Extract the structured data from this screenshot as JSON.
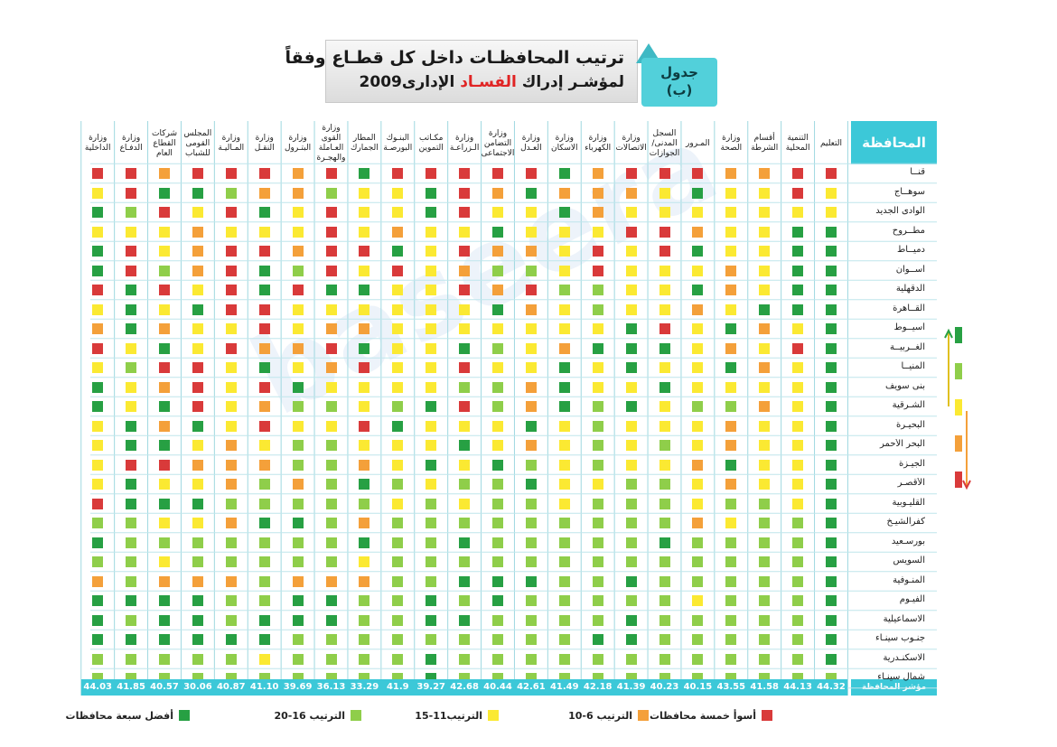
{
  "title": {
    "line1": "ترتيب المحافظـات داخل كل قطـاع وفقاً",
    "line2_before": "لمؤشـر إدراك ",
    "line2_highlight": "الفسـاد",
    "line2_after": " الإدارى2009"
  },
  "badge": {
    "line1": "جدول",
    "line2": "(ب)"
  },
  "watermark": "baseera",
  "header_governorate": "المحافظة",
  "index_label": "مؤشر المحافظة",
  "colors": {
    "1": "#d93a3a",
    "2": "#f4a03a",
    "3": "#fbe932",
    "4": "#8fce4a",
    "5": "#27a043",
    "accent": "#3cc8d8"
  },
  "legend": [
    {
      "level": 1,
      "label": "أسوأ خمسة محافظات"
    },
    {
      "level": 2,
      "label": "الترتيب 6-10"
    },
    {
      "level": 3,
      "label": "الترتيب11-15"
    },
    {
      "level": 4,
      "label": "الترتيب 16-20"
    },
    {
      "level": 5,
      "label": "أفضل سبعة محافظات"
    }
  ],
  "chart_data": {
    "type": "heatmap",
    "columns": [
      "التعليم",
      "التنمية المحلية",
      "أقسام الشرطة",
      "وزارة الصحة",
      "المـرور",
      "السجل المدنى/ الجوازات",
      "وزارة الاتصالات",
      "وزارة الكهرباء",
      "وزارة الاسكان",
      "وزارة العـدل",
      "وزارة التضامن الاجتماعى",
      "وزارة الـزراعـة",
      "مكـاتب التموين",
      "البنـوك البورصـة",
      "المطار الجمارك",
      "وزارة القوى العـاملة والهجـرة",
      "وزارة البتـرول",
      "وزارة النقـل",
      "وزارة المـاليـة",
      "المجلس القومى للشباب",
      "شركات القطاع العام",
      "وزارة الدفـاع",
      "وزارة الداخلية"
    ],
    "rows": [
      "قنــا",
      "سوهــاج",
      "الوادى الجديد",
      "مطــروح",
      "دميــاط",
      "أســوان",
      "الدقهلية",
      "القــاهرة",
      "أسيــوط",
      "الغــربيــة",
      "المنيــا",
      "بنى سويف",
      "الشـرقية",
      "البحيـرة",
      "البحر الأحمر",
      "الجيـزة",
      "الأقصـر",
      "القليـوبية",
      "كفرالشيـخ",
      "بورسـعيد",
      "السويس",
      "المنـوفية",
      "الفيـوم",
      "الاسماعيلية",
      "جنـوب سينـاء",
      "الاسكنـدرية",
      "شمال سينـاء"
    ],
    "values": [
      [
        1,
        1,
        2,
        2,
        1,
        1,
        1,
        2,
        5,
        1,
        1,
        1,
        1,
        1,
        5,
        1,
        2,
        1,
        1,
        1,
        2,
        1,
        1
      ],
      [
        3,
        1,
        3,
        3,
        5,
        3,
        2,
        2,
        2,
        5,
        2,
        1,
        5,
        3,
        3,
        4,
        2,
        2,
        4,
        5,
        5,
        1,
        3
      ],
      [
        3,
        3,
        3,
        3,
        3,
        3,
        3,
        2,
        5,
        3,
        3,
        1,
        5,
        3,
        3,
        1,
        3,
        5,
        1,
        3,
        1,
        4,
        5
      ],
      [
        5,
        5,
        3,
        3,
        2,
        1,
        1,
        3,
        3,
        3,
        5,
        3,
        3,
        2,
        3,
        1,
        3,
        3,
        3,
        2,
        3,
        3,
        3
      ],
      [
        5,
        5,
        3,
        3,
        5,
        1,
        3,
        1,
        3,
        2,
        2,
        1,
        3,
        5,
        1,
        1,
        2,
        1,
        1,
        2,
        3,
        1,
        5
      ],
      [
        5,
        5,
        3,
        2,
        3,
        3,
        3,
        1,
        3,
        4,
        4,
        2,
        3,
        1,
        3,
        1,
        4,
        5,
        1,
        2,
        4,
        1,
        5
      ],
      [
        5,
        5,
        3,
        2,
        5,
        3,
        3,
        4,
        4,
        1,
        2,
        1,
        3,
        3,
        5,
        5,
        1,
        5,
        1,
        3,
        1,
        5,
        1
      ],
      [
        5,
        5,
        5,
        3,
        2,
        3,
        3,
        4,
        3,
        2,
        5,
        3,
        3,
        3,
        3,
        3,
        3,
        1,
        1,
        5,
        3,
        5,
        3
      ],
      [
        5,
        3,
        2,
        5,
        3,
        1,
        5,
        3,
        3,
        3,
        3,
        3,
        3,
        3,
        2,
        2,
        3,
        1,
        3,
        3,
        2,
        5,
        2
      ],
      [
        5,
        1,
        3,
        2,
        3,
        5,
        5,
        5,
        2,
        3,
        4,
        5,
        3,
        3,
        5,
        1,
        2,
        2,
        1,
        3,
        5,
        3,
        1
      ],
      [
        5,
        3,
        2,
        5,
        3,
        3,
        5,
        3,
        5,
        3,
        3,
        1,
        3,
        3,
        1,
        2,
        3,
        5,
        3,
        1,
        1,
        4,
        3
      ],
      [
        5,
        3,
        3,
        3,
        3,
        5,
        3,
        3,
        5,
        2,
        4,
        4,
        3,
        3,
        3,
        3,
        5,
        1,
        3,
        1,
        2,
        3,
        5
      ],
      [
        5,
        3,
        2,
        4,
        4,
        3,
        5,
        4,
        5,
        2,
        4,
        1,
        5,
        4,
        3,
        4,
        4,
        2,
        3,
        1,
        5,
        3,
        5
      ],
      [
        5,
        3,
        3,
        2,
        3,
        3,
        3,
        4,
        3,
        5,
        3,
        3,
        3,
        5,
        1,
        3,
        3,
        1,
        3,
        5,
        2,
        5,
        3
      ],
      [
        5,
        3,
        3,
        2,
        3,
        4,
        3,
        4,
        3,
        2,
        3,
        5,
        3,
        3,
        3,
        4,
        4,
        3,
        2,
        3,
        5,
        5,
        3
      ],
      [
        5,
        3,
        3,
        5,
        2,
        3,
        3,
        4,
        3,
        4,
        5,
        3,
        5,
        3,
        2,
        4,
        4,
        2,
        2,
        2,
        1,
        1,
        3
      ],
      [
        5,
        3,
        3,
        2,
        3,
        4,
        4,
        3,
        3,
        5,
        4,
        4,
        3,
        4,
        5,
        4,
        2,
        4,
        2,
        3,
        3,
        5,
        3
      ],
      [
        5,
        3,
        4,
        4,
        3,
        4,
        4,
        4,
        3,
        4,
        4,
        3,
        4,
        3,
        4,
        4,
        4,
        4,
        4,
        5,
        5,
        5,
        1
      ],
      [
        5,
        4,
        4,
        3,
        2,
        4,
        4,
        4,
        4,
        4,
        4,
        4,
        4,
        4,
        2,
        4,
        5,
        5,
        2,
        3,
        3,
        4,
        4
      ],
      [
        5,
        4,
        4,
        4,
        4,
        5,
        4,
        4,
        4,
        4,
        4,
        5,
        4,
        4,
        5,
        4,
        4,
        4,
        4,
        4,
        4,
        4,
        5
      ],
      [
        5,
        4,
        4,
        4,
        4,
        4,
        4,
        4,
        4,
        4,
        4,
        4,
        4,
        4,
        3,
        4,
        4,
        4,
        4,
        4,
        3,
        4,
        4
      ],
      [
        5,
        4,
        4,
        4,
        4,
        4,
        5,
        4,
        4,
        5,
        5,
        5,
        4,
        4,
        2,
        2,
        2,
        4,
        2,
        2,
        2,
        4,
        2
      ],
      [
        5,
        4,
        4,
        4,
        3,
        4,
        4,
        4,
        4,
        4,
        5,
        4,
        5,
        4,
        4,
        5,
        5,
        4,
        4,
        5,
        5,
        5,
        5
      ],
      [
        5,
        4,
        4,
        4,
        4,
        4,
        5,
        4,
        4,
        4,
        4,
        5,
        5,
        4,
        4,
        5,
        5,
        5,
        4,
        5,
        5,
        4,
        5
      ],
      [
        5,
        4,
        4,
        4,
        4,
        4,
        5,
        5,
        4,
        4,
        4,
        4,
        4,
        4,
        4,
        4,
        4,
        5,
        5,
        5,
        5,
        5,
        5
      ],
      [
        5,
        4,
        4,
        4,
        4,
        4,
        4,
        4,
        4,
        4,
        4,
        4,
        5,
        4,
        4,
        4,
        4,
        3,
        4,
        4,
        4,
        4,
        4
      ],
      [
        4,
        4,
        4,
        4,
        4,
        4,
        4,
        4,
        4,
        4,
        4,
        4,
        5,
        4,
        4,
        4,
        4,
        4,
        4,
        4,
        4,
        4,
        4
      ]
    ],
    "index": [
      "44.32",
      "44.13",
      "41.58",
      "43.55",
      "40.15",
      "40.23",
      "41.39",
      "42.18",
      "41.49",
      "42.61",
      "40.44",
      "42.68",
      "39.27",
      "41.9",
      "33.29",
      "36.13",
      "39.69",
      "41.10",
      "40.87",
      "30.06",
      "40.57",
      "41.85",
      "44.03"
    ],
    "legend_placement": "bottom",
    "grid": true
  }
}
